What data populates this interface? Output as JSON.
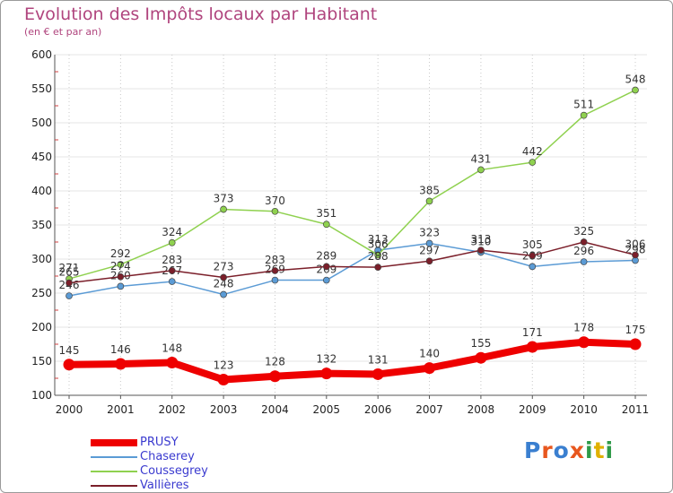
{
  "title": "Evolution des Impôts locaux par Habitant",
  "subtitle": "(en € et par an)",
  "logo": {
    "text": "Proxiti",
    "colors": [
      "#3a7fd0",
      "#e8571e",
      "#3a7fd0",
      "#e8571e",
      "#2f9a48",
      "#e0b000",
      "#2f9a48"
    ]
  },
  "chart_data": {
    "type": "line",
    "x": [
      "2000",
      "2001",
      "2002",
      "2003",
      "2004",
      "2005",
      "2006",
      "2007",
      "2008",
      "2009",
      "2010",
      "2011"
    ],
    "ylim": [
      100,
      600
    ],
    "yticks": [
      100,
      150,
      200,
      250,
      300,
      350,
      400,
      450,
      500,
      550,
      600
    ],
    "grid": true,
    "legend_position": "bottom-left",
    "series": [
      {
        "name": "PRUSY",
        "color": "#ee0000",
        "values": [
          145,
          146,
          148,
          123,
          128,
          132,
          131,
          140,
          155,
          171,
          178,
          175
        ],
        "labels": [
          "145",
          "146",
          "148",
          "123",
          "128",
          "132",
          "131",
          "140",
          "155",
          "171",
          "178",
          "175"
        ]
      },
      {
        "name": "Chaserey",
        "color": "#5b9bd5",
        "values": [
          246,
          260,
          267,
          248,
          269,
          269,
          313,
          323,
          310,
          289,
          296,
          298
        ],
        "labels": [
          "246",
          "260",
          "267",
          "248",
          "269",
          "269",
          "313",
          "323",
          "310",
          "289",
          "296",
          "298"
        ]
      },
      {
        "name": "Coussegrey",
        "color": "#8fd14f",
        "values": [
          271,
          292,
          324,
          373,
          370,
          351,
          306,
          385,
          431,
          442,
          511,
          548
        ],
        "labels": [
          "271",
          "292",
          "324",
          "373",
          "370",
          "351",
          "306",
          "385",
          "431",
          "442",
          "511",
          "548"
        ]
      },
      {
        "name": "Vallières",
        "color": "#7b1f2a",
        "values": [
          265,
          274,
          283,
          273,
          283,
          289,
          288,
          297,
          313,
          305,
          325,
          306
        ],
        "labels": [
          "265",
          "274",
          "283",
          "273",
          "283",
          "289",
          "288",
          "297",
          "313",
          "305",
          "325",
          "306"
        ]
      }
    ]
  }
}
